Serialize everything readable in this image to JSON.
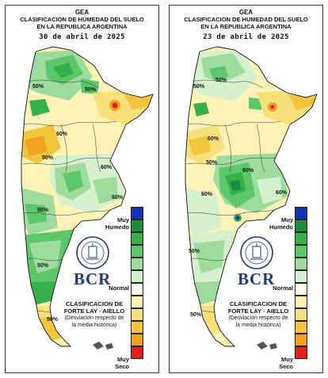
{
  "panels": [
    {
      "org": "GEA",
      "title_line1": "CLASIFICACION DE HUMEDAD DEL SUELO",
      "title_line2": "EN LA REPUBLICA ARGENTINA",
      "date": "30 de abril de 2025",
      "contour_labels": [
        "50%",
        "50%",
        "60%",
        "50%",
        "60%",
        "50%",
        "60%",
        "50%",
        "50%"
      ]
    },
    {
      "org": "GEA",
      "title_line1": "CLASIFICACION DE HUMEDAD DEL SUELO",
      "title_line2": "EN LA REPUBLICA ARGENTINA",
      "date": "23 de abril de 2025",
      "contour_labels": [
        "50%",
        "50%",
        "60%",
        "50%",
        "60%",
        "50%",
        "60%",
        "60%",
        "50%"
      ]
    }
  ],
  "legend": {
    "top_label_1": "Muy",
    "top_label_2": "Humedo",
    "mid_label": "Normal",
    "bottom_label_1": "Muy",
    "bottom_label_2": "Seco",
    "colors": [
      "#1433b4",
      "#1e8c3a",
      "#36b04a",
      "#5cc66a",
      "#9edc9e",
      "#d4f0cc",
      "#fbfbe8",
      "#fdf3b6",
      "#f7e07a",
      "#f2c53c",
      "#f0a11e",
      "#e0201a"
    ]
  },
  "branding": {
    "logo_text": "BCR",
    "seal_text": "BOLSA DE COMERCIO DE ROSARIO",
    "classification_line1": "CLASIFICACION DE",
    "classification_line2": "FORTE LAY - AIELLO",
    "note_line1": "(Desviación respecto de",
    "note_line2": "la media histórica)"
  }
}
